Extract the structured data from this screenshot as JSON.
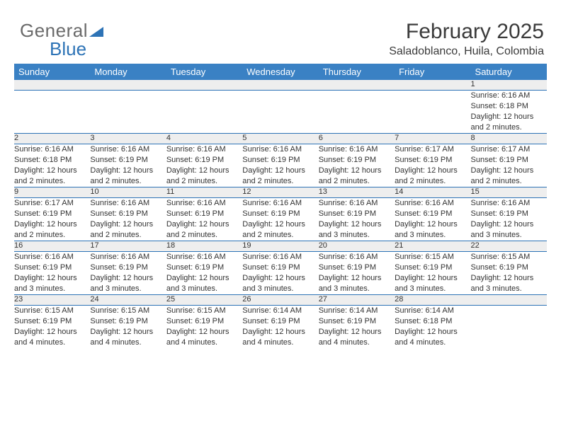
{
  "brand": {
    "word1": "General",
    "word2": "Blue"
  },
  "title": "February 2025",
  "location": "Saladoblanco, Huila, Colombia",
  "colors": {
    "header_bg": "#3a81c4",
    "header_text": "#ffffff",
    "rule": "#2d73b6",
    "daynum_bg": "#eeeeee",
    "text": "#333333",
    "brand_gray": "#6a6a6a",
    "brand_blue": "#2d73b6"
  },
  "weekdays": [
    "Sunday",
    "Monday",
    "Tuesday",
    "Wednesday",
    "Thursday",
    "Friday",
    "Saturday"
  ],
  "weeks": [
    [
      null,
      null,
      null,
      null,
      null,
      null,
      {
        "n": "1",
        "sunrise": "Sunrise: 6:16 AM",
        "sunset": "Sunset: 6:18 PM",
        "day1": "Daylight: 12 hours",
        "day2": "and 2 minutes."
      }
    ],
    [
      {
        "n": "2",
        "sunrise": "Sunrise: 6:16 AM",
        "sunset": "Sunset: 6:18 PM",
        "day1": "Daylight: 12 hours",
        "day2": "and 2 minutes."
      },
      {
        "n": "3",
        "sunrise": "Sunrise: 6:16 AM",
        "sunset": "Sunset: 6:19 PM",
        "day1": "Daylight: 12 hours",
        "day2": "and 2 minutes."
      },
      {
        "n": "4",
        "sunrise": "Sunrise: 6:16 AM",
        "sunset": "Sunset: 6:19 PM",
        "day1": "Daylight: 12 hours",
        "day2": "and 2 minutes."
      },
      {
        "n": "5",
        "sunrise": "Sunrise: 6:16 AM",
        "sunset": "Sunset: 6:19 PM",
        "day1": "Daylight: 12 hours",
        "day2": "and 2 minutes."
      },
      {
        "n": "6",
        "sunrise": "Sunrise: 6:16 AM",
        "sunset": "Sunset: 6:19 PM",
        "day1": "Daylight: 12 hours",
        "day2": "and 2 minutes."
      },
      {
        "n": "7",
        "sunrise": "Sunrise: 6:17 AM",
        "sunset": "Sunset: 6:19 PM",
        "day1": "Daylight: 12 hours",
        "day2": "and 2 minutes."
      },
      {
        "n": "8",
        "sunrise": "Sunrise: 6:17 AM",
        "sunset": "Sunset: 6:19 PM",
        "day1": "Daylight: 12 hours",
        "day2": "and 2 minutes."
      }
    ],
    [
      {
        "n": "9",
        "sunrise": "Sunrise: 6:17 AM",
        "sunset": "Sunset: 6:19 PM",
        "day1": "Daylight: 12 hours",
        "day2": "and 2 minutes."
      },
      {
        "n": "10",
        "sunrise": "Sunrise: 6:16 AM",
        "sunset": "Sunset: 6:19 PM",
        "day1": "Daylight: 12 hours",
        "day2": "and 2 minutes."
      },
      {
        "n": "11",
        "sunrise": "Sunrise: 6:16 AM",
        "sunset": "Sunset: 6:19 PM",
        "day1": "Daylight: 12 hours",
        "day2": "and 2 minutes."
      },
      {
        "n": "12",
        "sunrise": "Sunrise: 6:16 AM",
        "sunset": "Sunset: 6:19 PM",
        "day1": "Daylight: 12 hours",
        "day2": "and 2 minutes."
      },
      {
        "n": "13",
        "sunrise": "Sunrise: 6:16 AM",
        "sunset": "Sunset: 6:19 PM",
        "day1": "Daylight: 12 hours",
        "day2": "and 3 minutes."
      },
      {
        "n": "14",
        "sunrise": "Sunrise: 6:16 AM",
        "sunset": "Sunset: 6:19 PM",
        "day1": "Daylight: 12 hours",
        "day2": "and 3 minutes."
      },
      {
        "n": "15",
        "sunrise": "Sunrise: 6:16 AM",
        "sunset": "Sunset: 6:19 PM",
        "day1": "Daylight: 12 hours",
        "day2": "and 3 minutes."
      }
    ],
    [
      {
        "n": "16",
        "sunrise": "Sunrise: 6:16 AM",
        "sunset": "Sunset: 6:19 PM",
        "day1": "Daylight: 12 hours",
        "day2": "and 3 minutes."
      },
      {
        "n": "17",
        "sunrise": "Sunrise: 6:16 AM",
        "sunset": "Sunset: 6:19 PM",
        "day1": "Daylight: 12 hours",
        "day2": "and 3 minutes."
      },
      {
        "n": "18",
        "sunrise": "Sunrise: 6:16 AM",
        "sunset": "Sunset: 6:19 PM",
        "day1": "Daylight: 12 hours",
        "day2": "and 3 minutes."
      },
      {
        "n": "19",
        "sunrise": "Sunrise: 6:16 AM",
        "sunset": "Sunset: 6:19 PM",
        "day1": "Daylight: 12 hours",
        "day2": "and 3 minutes."
      },
      {
        "n": "20",
        "sunrise": "Sunrise: 6:16 AM",
        "sunset": "Sunset: 6:19 PM",
        "day1": "Daylight: 12 hours",
        "day2": "and 3 minutes."
      },
      {
        "n": "21",
        "sunrise": "Sunrise: 6:15 AM",
        "sunset": "Sunset: 6:19 PM",
        "day1": "Daylight: 12 hours",
        "day2": "and 3 minutes."
      },
      {
        "n": "22",
        "sunrise": "Sunrise: 6:15 AM",
        "sunset": "Sunset: 6:19 PM",
        "day1": "Daylight: 12 hours",
        "day2": "and 3 minutes."
      }
    ],
    [
      {
        "n": "23",
        "sunrise": "Sunrise: 6:15 AM",
        "sunset": "Sunset: 6:19 PM",
        "day1": "Daylight: 12 hours",
        "day2": "and 4 minutes."
      },
      {
        "n": "24",
        "sunrise": "Sunrise: 6:15 AM",
        "sunset": "Sunset: 6:19 PM",
        "day1": "Daylight: 12 hours",
        "day2": "and 4 minutes."
      },
      {
        "n": "25",
        "sunrise": "Sunrise: 6:15 AM",
        "sunset": "Sunset: 6:19 PM",
        "day1": "Daylight: 12 hours",
        "day2": "and 4 minutes."
      },
      {
        "n": "26",
        "sunrise": "Sunrise: 6:14 AM",
        "sunset": "Sunset: 6:19 PM",
        "day1": "Daylight: 12 hours",
        "day2": "and 4 minutes."
      },
      {
        "n": "27",
        "sunrise": "Sunrise: 6:14 AM",
        "sunset": "Sunset: 6:19 PM",
        "day1": "Daylight: 12 hours",
        "day2": "and 4 minutes."
      },
      {
        "n": "28",
        "sunrise": "Sunrise: 6:14 AM",
        "sunset": "Sunset: 6:18 PM",
        "day1": "Daylight: 12 hours",
        "day2": "and 4 minutes."
      },
      null
    ]
  ]
}
